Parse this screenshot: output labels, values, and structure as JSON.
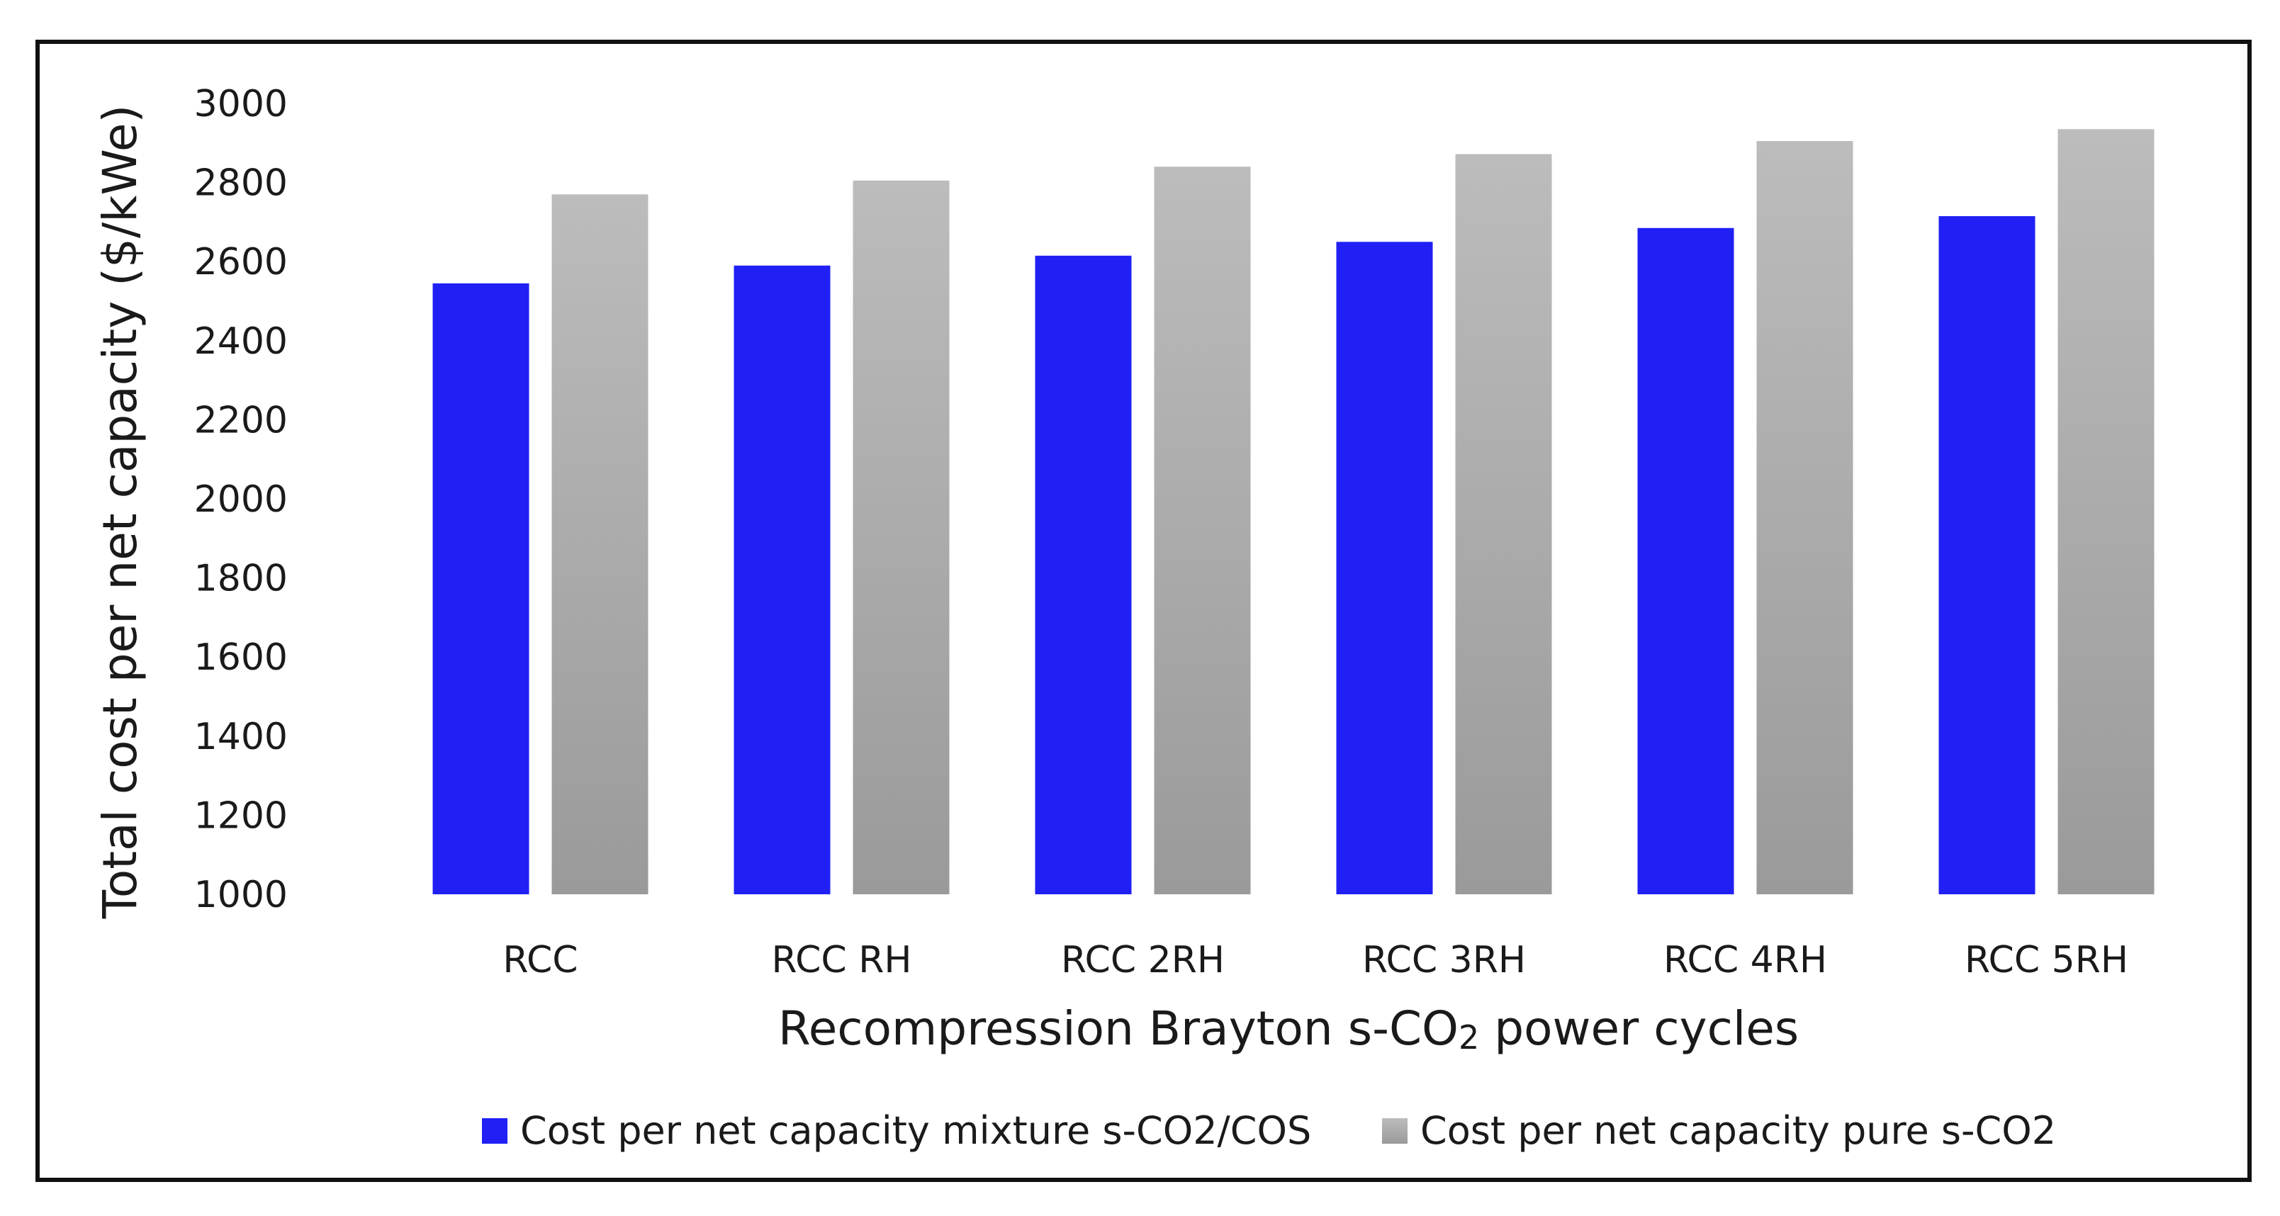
{
  "chart_data": {
    "type": "bar",
    "title": "",
    "categories": [
      "RCC",
      "RCC RH",
      "RCC 2RH",
      "RCC 3RH",
      "RCC 4RH",
      "RCC 5RH"
    ],
    "series": [
      {
        "name": "Cost per net capacity mixture s-CO2/COS",
        "color": "#2020f5",
        "values": [
          2545,
          2590,
          2615,
          2650,
          2685,
          2715
        ]
      },
      {
        "name": "Cost per net capacity pure s-CO2",
        "color": "#b4b4b4",
        "color_bottom": "#999999",
        "values": [
          2770,
          2805,
          2840,
          2872,
          2905,
          2935
        ]
      }
    ],
    "xlabel_main": "Recompression  Brayton s-CO",
    "xlabel_sub": "2",
    "xlabel_tail": " power cycles",
    "ylabel": "Total cost per net capacity ($/kWe)",
    "ylim": [
      1000,
      3000
    ],
    "yticks": [
      1000,
      1200,
      1400,
      1600,
      1800,
      2000,
      2200,
      2400,
      2600,
      2800,
      3000
    ],
    "grid": false,
    "legend_position": "bottom-center"
  }
}
